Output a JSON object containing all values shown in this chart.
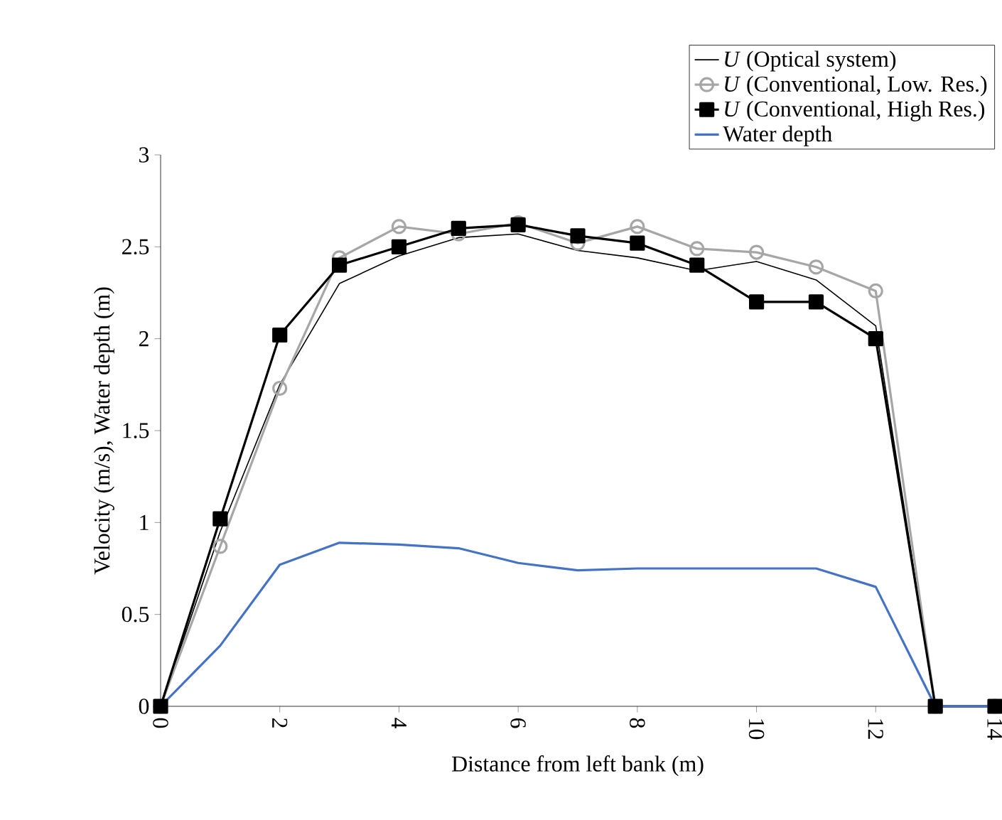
{
  "chart_data": {
    "type": "line",
    "xlabel": "Distance from left bank (m)",
    "ylabel": "Velocity  (m/s),  Water depth (m)",
    "x": [
      0,
      1,
      2,
      3,
      4,
      5,
      6,
      7,
      8,
      9,
      10,
      11,
      12,
      13,
      14
    ],
    "series": [
      {
        "name": "*U* (Optical system)",
        "color": "#000000",
        "marker": "none",
        "values": [
          0,
          0.95,
          1.75,
          2.3,
          2.45,
          2.55,
          2.57,
          2.48,
          2.44,
          2.37,
          2.42,
          2.32,
          2.07,
          0,
          0
        ]
      },
      {
        "name": "*U* (Conventional, Low. Res.)",
        "color": "#a6a6a6",
        "marker": "circle",
        "values": [
          0,
          0.87,
          1.73,
          2.44,
          2.61,
          2.57,
          2.63,
          2.52,
          2.61,
          2.49,
          2.47,
          2.39,
          2.26,
          0,
          0
        ]
      },
      {
        "name": "*U* (Conventional, High Res.)",
        "color": "#000000",
        "marker": "square",
        "values": [
          0,
          1.02,
          2.02,
          2.4,
          2.5,
          2.6,
          2.62,
          2.56,
          2.52,
          2.4,
          2.2,
          2.2,
          2.0,
          0,
          0
        ]
      },
      {
        "name": "Water depth",
        "color": "#4472c4",
        "marker": "none",
        "values": [
          0,
          0.33,
          0.77,
          0.89,
          0.88,
          0.86,
          0.78,
          0.74,
          0.75,
          0.75,
          0.75,
          0.75,
          0.65,
          0,
          0
        ]
      }
    ],
    "xlim": [
      0,
      14
    ],
    "xticks": [
      0,
      2,
      4,
      6,
      8,
      10,
      12,
      14
    ],
    "ylim": [
      0,
      3
    ],
    "yticks": [
      0,
      0.5,
      1,
      1.5,
      2,
      2.5,
      3
    ],
    "grid": false,
    "legend": "top right"
  }
}
